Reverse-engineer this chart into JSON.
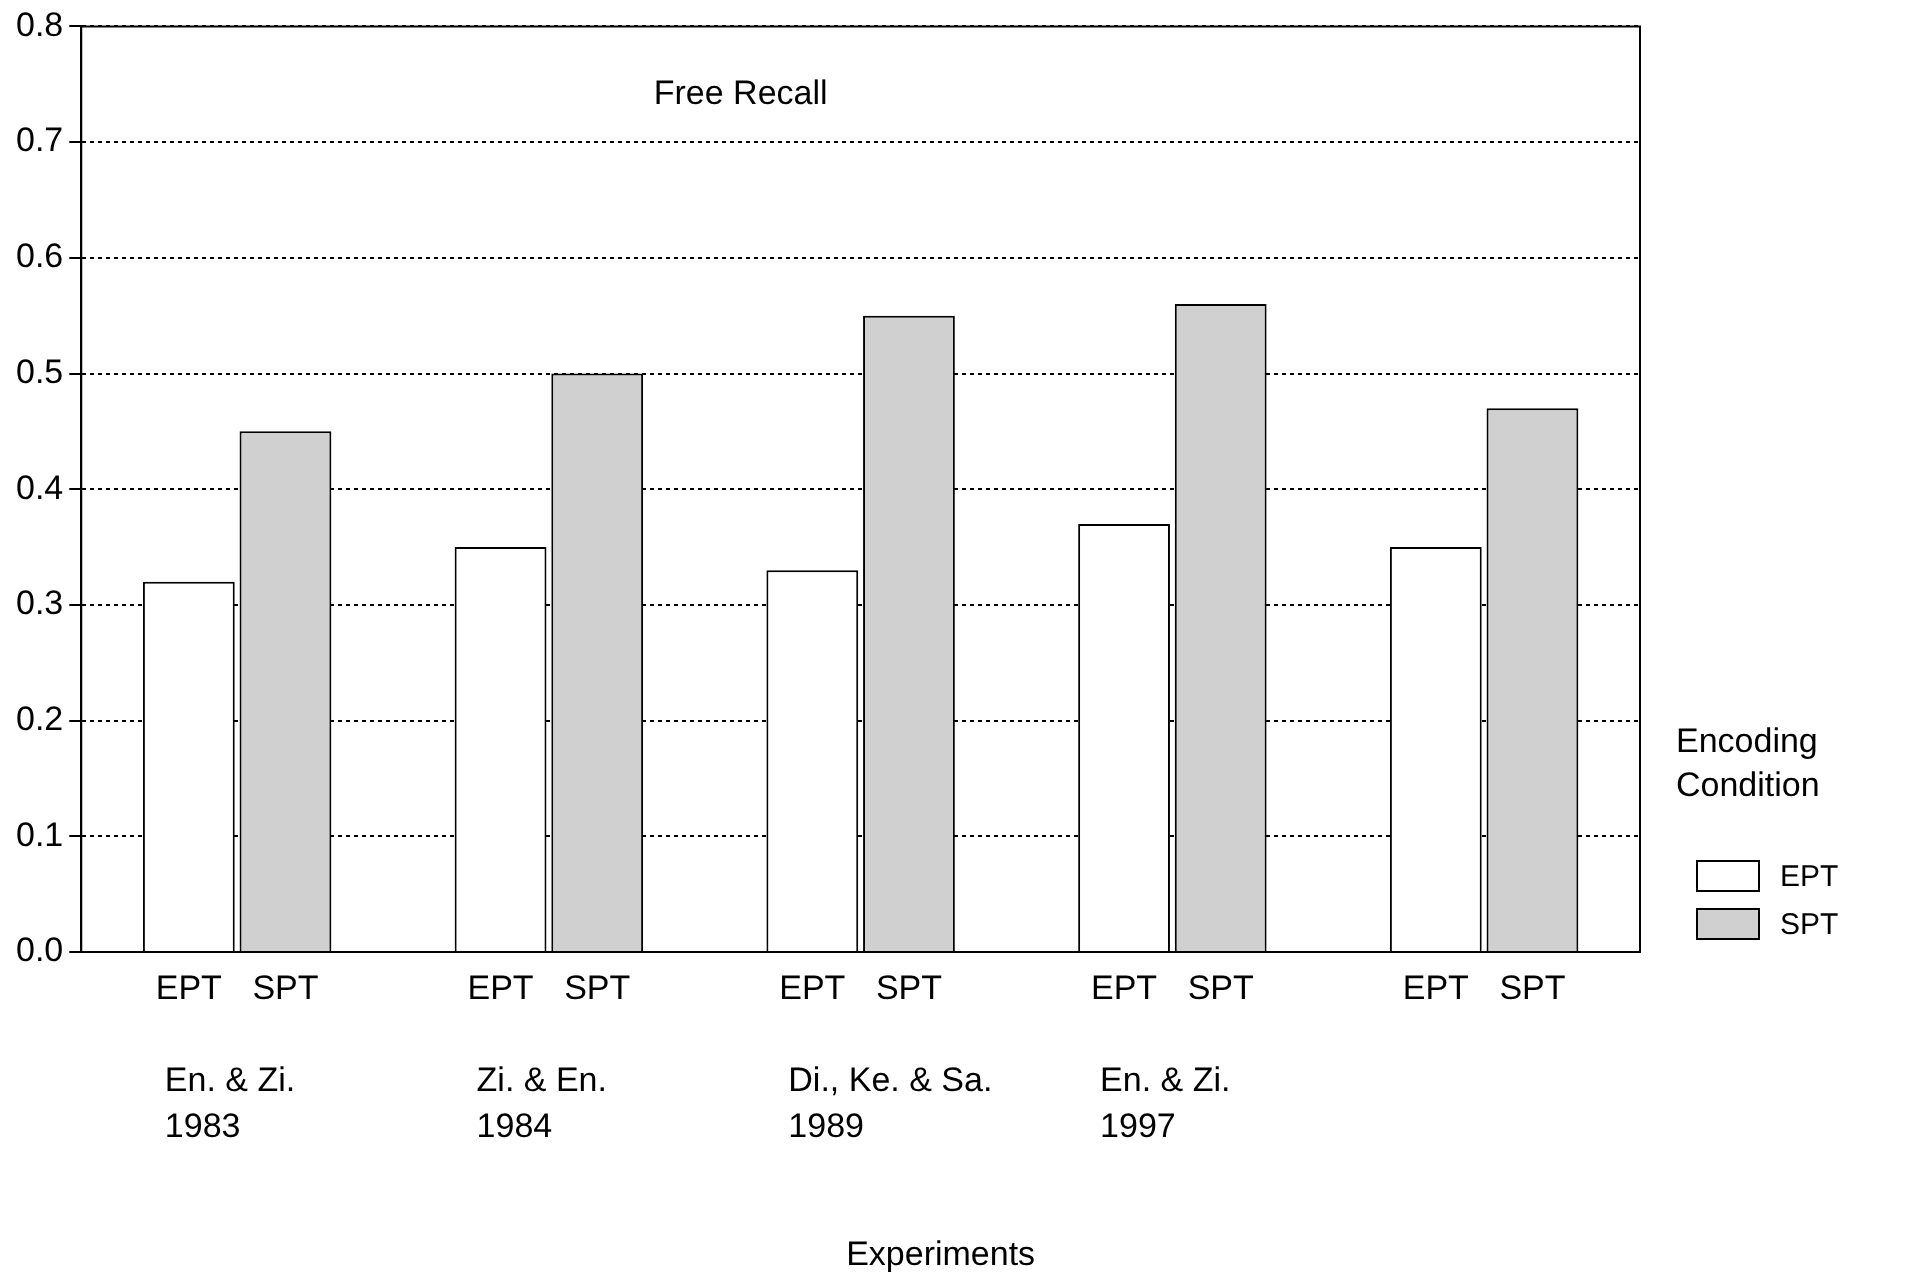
{
  "chart_data": {
    "type": "bar",
    "title": "Free Recall",
    "xlabel": "Experiments",
    "legend_title": "Encoding Condition",
    "categories": [
      "En. & Zi. 1983",
      "Zi. & En. 1984",
      "Di., Ke. & Sa. 1989",
      "En. & Zi. 1997",
      null
    ],
    "series": [
      {
        "name": "EPT",
        "color": "#ffffff",
        "values": [
          0.32,
          0.35,
          0.33,
          0.37,
          0.35
        ]
      },
      {
        "name": "SPT",
        "color": "#d0d0d0",
        "values": [
          0.45,
          0.5,
          0.55,
          0.56,
          0.47
        ]
      }
    ],
    "ylim": [
      0,
      0.8
    ],
    "yticks": [
      {
        "value": 0,
        "label": "0.0"
      },
      {
        "value": 0.1,
        "label": "0.1"
      },
      {
        "value": 0.2,
        "label": "0.2"
      },
      {
        "value": 0.3,
        "label": "0.3"
      },
      {
        "value": 0.4,
        "label": "0.4"
      },
      {
        "value": 0.5,
        "label": "0.5"
      },
      {
        "value": 0.6,
        "label": "0.6"
      },
      {
        "value": 0.7,
        "label": "0.7"
      },
      {
        "value": 0.8,
        "label": "0.8"
      }
    ],
    "grid": "y",
    "legend": "bottom right"
  }
}
